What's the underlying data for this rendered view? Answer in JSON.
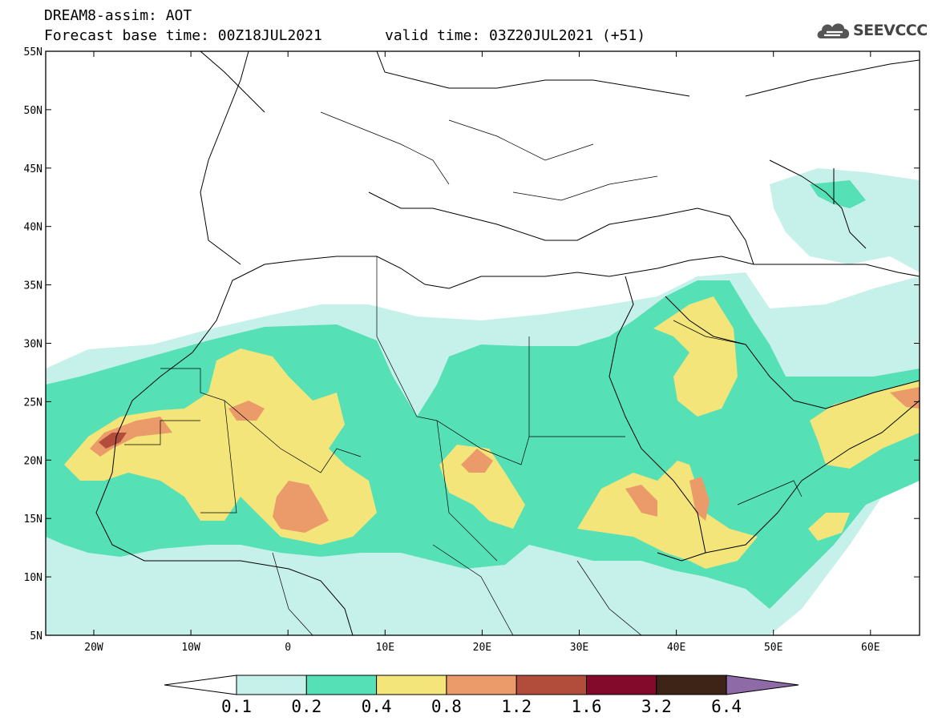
{
  "header": {
    "model_title": "DREAM8-assim: AOT",
    "base_time": "Forecast base time: 00Z18JUL2021",
    "valid_time": "valid time: 03Z20JUL2021 (+51)"
  },
  "logo": {
    "text": "SEEVCCC",
    "icon": "cloud-logo-icon"
  },
  "map": {
    "lat_labels": [
      "55N",
      "50N",
      "45N",
      "40N",
      "35N",
      "30N",
      "25N",
      "20N",
      "15N",
      "10N",
      "5N"
    ],
    "lon_labels": [
      "20W",
      "10W",
      "0",
      "10E",
      "20E",
      "30E",
      "40E",
      "50E",
      "60E"
    ]
  },
  "colorbar": {
    "tick_labels": [
      "0.1",
      "0.2",
      "0.4",
      "0.8",
      "1.2",
      "1.6",
      "3.2",
      "6.4"
    ],
    "colors": [
      "#ffffff",
      "#c6f0ea",
      "#55e0b6",
      "#f3e57a",
      "#eb9a6a",
      "#b24d3c",
      "#840a2c",
      "#3d2417",
      "#8e6aa6"
    ]
  },
  "palette": {
    "ocean": "#ffffff",
    "land": "#ffffff",
    "aot_0_1": "#c6f0ea",
    "aot_0_2": "#55e0b6",
    "aot_0_4": "#f3e57a",
    "aot_0_8": "#eb9a6a",
    "aot_1_2": "#b24d3c"
  }
}
